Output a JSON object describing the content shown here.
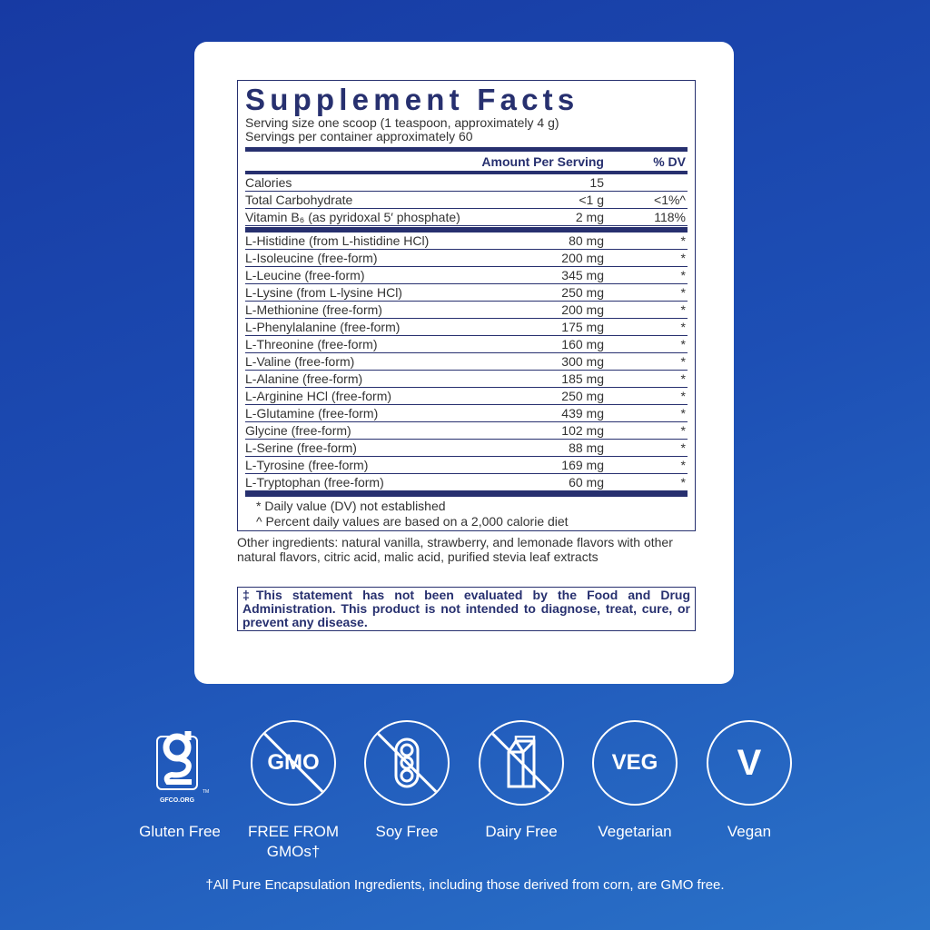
{
  "facts": {
    "title": "Supplement Facts",
    "serving_size": "Serving size  one scoop (1 teaspoon, approximately 4 g)",
    "servings_per": "Servings per container  approximately 60",
    "header_amount": "Amount Per Serving",
    "header_dv": "% DV",
    "top_rows": [
      {
        "name": "Calories",
        "amount": "15",
        "dv": ""
      },
      {
        "name": "Total Carbohydrate",
        "amount": "<1 g",
        "dv": "<1%^"
      },
      {
        "name": "Vitamin B₆ (as pyridoxal 5′ phosphate)",
        "amount": "2 mg",
        "dv": "118%"
      }
    ],
    "amino_rows": [
      {
        "name": "L-Histidine (from L-histidine HCl)",
        "amount": "80 mg",
        "dv": "*"
      },
      {
        "name": "L-Isoleucine (free-form)",
        "amount": "200 mg",
        "dv": "*"
      },
      {
        "name": "L-Leucine (free-form)",
        "amount": "345 mg",
        "dv": "*"
      },
      {
        "name": "L-Lysine (from L-lysine HCl)",
        "amount": "250 mg",
        "dv": "*"
      },
      {
        "name": "L-Methionine (free-form)",
        "amount": "200 mg",
        "dv": "*"
      },
      {
        "name": "L-Phenylalanine (free-form)",
        "amount": "175 mg",
        "dv": "*"
      },
      {
        "name": "L-Threonine (free-form)",
        "amount": "160 mg",
        "dv": "*"
      },
      {
        "name": "L-Valine (free-form)",
        "amount": "300 mg",
        "dv": "*"
      },
      {
        "name": "L-Alanine (free-form)",
        "amount": "185 mg",
        "dv": "*"
      },
      {
        "name": "L-Arginine HCl (free-form)",
        "amount": "250 mg",
        "dv": "*"
      },
      {
        "name": "L-Glutamine (free-form)",
        "amount": "439 mg",
        "dv": "*"
      },
      {
        "name": "Glycine (free-form)",
        "amount": "102 mg",
        "dv": "*"
      },
      {
        "name": "L-Serine (free-form)",
        "amount": "88 mg",
        "dv": "*"
      },
      {
        "name": "L-Tyrosine (free-form)",
        "amount": "169 mg",
        "dv": "*"
      },
      {
        "name": "L-Tryptophan (free-form)",
        "amount": "60 mg",
        "dv": "*"
      }
    ],
    "foot1": "* Daily value (DV) not established",
    "foot2": "^ Percent daily values are based on a 2,000 calorie diet"
  },
  "other_ingredients": "Other ingredients: natural vanilla, strawberry, and lemonade flavors with other natural flavors, citric acid, malic acid, purified stevia leaf extracts",
  "disclaimer": "‡This statement has not been evaluated by the Food and Drug Administration. This product is not intended to diagnose, treat, cure, or prevent any disease.",
  "badges": [
    {
      "icon": "gluten-free-gfco-logo",
      "label": "Gluten Free",
      "logo_text": "GFCO.ORG"
    },
    {
      "icon": "no-gmo-icon",
      "label": "FREE FROM GMOs†",
      "inner": "GMO"
    },
    {
      "icon": "no-soy-icon",
      "label": "Soy Free"
    },
    {
      "icon": "no-dairy-icon",
      "label": "Dairy Free"
    },
    {
      "icon": "veg-icon",
      "label": "Vegetarian",
      "inner": "VEG"
    },
    {
      "icon": "vegan-icon",
      "label": "Vegan",
      "inner": "V"
    }
  ],
  "gmo_note": "†All Pure Encapsulation Ingredients, including those derived from corn, are GMO free.",
  "colors": {
    "background": "#1d4fb5",
    "label_navy": "#27306f",
    "panel": "#ffffff"
  }
}
